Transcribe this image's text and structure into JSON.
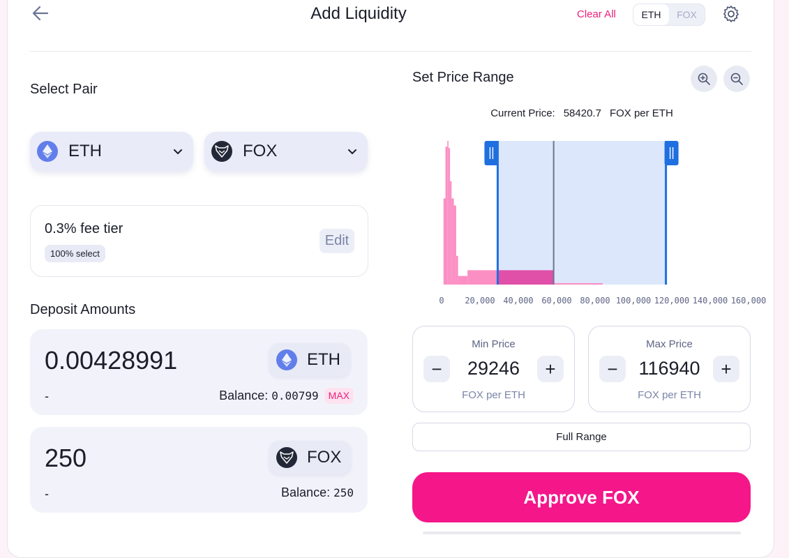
{
  "header": {
    "title": "Add Liquidity",
    "clear_all": "Clear All",
    "toggle": [
      "ETH",
      "FOX"
    ]
  },
  "select_pair": {
    "label": "Select Pair",
    "token_a": "ETH",
    "token_b": "FOX"
  },
  "fee": {
    "title": "0.3% fee tier",
    "badge": "100% select",
    "edit": "Edit"
  },
  "deposit": {
    "label": "Deposit Amounts",
    "items": [
      {
        "amount": "0.00428991",
        "token": "ETH",
        "usd": "-",
        "balance_label": "Balance:",
        "balance": "0.00799",
        "max": "MAX"
      },
      {
        "amount": "250",
        "token": "FOX",
        "usd": "-",
        "balance_label": "Balance:",
        "balance": "250"
      }
    ]
  },
  "price_range": {
    "label": "Set Price Range",
    "current_label": "Current Price:",
    "current_value": "58420.7",
    "current_unit": "FOX per ETH",
    "min": {
      "label": "Min Price",
      "value": "29246",
      "unit": "FOX per ETH"
    },
    "max": {
      "label": "Max Price",
      "value": "116940",
      "unit": "FOX per ETH"
    },
    "full_range": "Full Range"
  },
  "chart_data": {
    "type": "bar",
    "x_ticks": [
      "0",
      "20,000",
      "40,000",
      "60,000",
      "80,000",
      "100,000",
      "120,000",
      "140,000",
      "160,000"
    ],
    "xlim": [
      0,
      160000
    ],
    "current_price": 58420.7,
    "selected_range": [
      29246,
      116940
    ],
    "liquidity": [
      {
        "x0": 1000,
        "x1": 2000,
        "v": 0.6
      },
      {
        "x0": 2000,
        "x1": 3000,
        "v": 0.96
      },
      {
        "x0": 3000,
        "x1": 3600,
        "v": 1.0
      },
      {
        "x0": 3600,
        "x1": 4400,
        "v": 0.95
      },
      {
        "x0": 4400,
        "x1": 5200,
        "v": 0.72
      },
      {
        "x0": 5200,
        "x1": 6400,
        "v": 0.6
      },
      {
        "x0": 6400,
        "x1": 7600,
        "v": 0.55
      },
      {
        "x0": 7600,
        "x1": 8600,
        "v": 0.2
      },
      {
        "x0": 8600,
        "x1": 13500,
        "v": 0.06
      },
      {
        "x0": 13500,
        "x1": 29246,
        "v": 0.1
      },
      {
        "x0": 29246,
        "x1": 58420.7,
        "v": 0.1
      },
      {
        "x0": 58420.7,
        "x1": 84000,
        "v": 0.01
      }
    ],
    "colors": {
      "bar": "#fb8fc4",
      "bar_in_range": "#e04fa8",
      "range_fill": "#dce7fb",
      "handle": "#1f6fe0",
      "current_line": "#6c7590"
    }
  },
  "approve": "Approve FOX"
}
